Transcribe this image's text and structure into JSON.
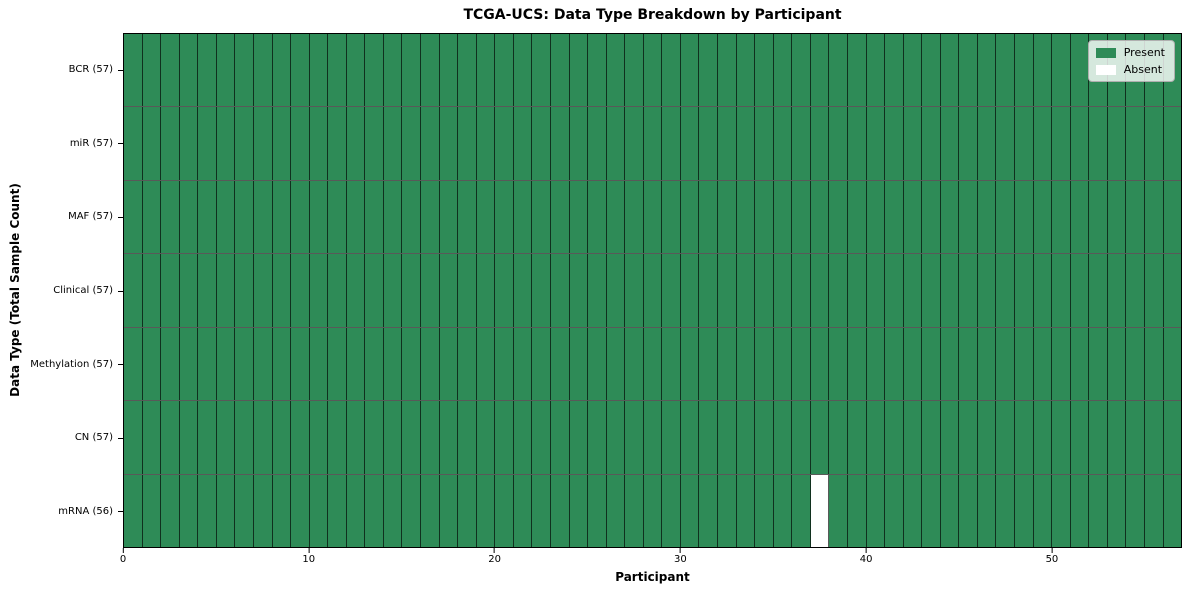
{
  "chart_data": {
    "type": "heatmap",
    "title": "TCGA-UCS: Data Type Breakdown by Participant",
    "xlabel": "Participant",
    "ylabel": "Data Type (Total Sample Count)",
    "n_participants": 57,
    "x_ticks": [
      0,
      10,
      20,
      30,
      40,
      50
    ],
    "x_range": [
      0,
      57
    ],
    "rows": [
      {
        "label": "BCR (57)",
        "data_type": "BCR",
        "sample_count": 57,
        "absent_participants": []
      },
      {
        "label": "miR (57)",
        "data_type": "miR",
        "sample_count": 57,
        "absent_participants": []
      },
      {
        "label": "MAF (57)",
        "data_type": "MAF",
        "sample_count": 57,
        "absent_participants": []
      },
      {
        "label": "Clinical (57)",
        "data_type": "Clinical",
        "sample_count": 57,
        "absent_participants": []
      },
      {
        "label": "Methylation (57)",
        "data_type": "Methylation",
        "sample_count": 57,
        "absent_participants": []
      },
      {
        "label": "CN (57)",
        "data_type": "CN",
        "sample_count": 57,
        "absent_participants": []
      },
      {
        "label": "mRNA (56)",
        "data_type": "mRNA",
        "sample_count": 56,
        "absent_participants": [
          37
        ]
      }
    ],
    "colors": {
      "present": "#2e8b57",
      "absent": "#ffffff",
      "cell_edge": "rgba(0,0,0,0.65)"
    },
    "legend": {
      "position": "upper right",
      "entries": [
        {
          "label": "Present",
          "color": "#2e8b57"
        },
        {
          "label": "Absent",
          "color": "#ffffff"
        }
      ]
    },
    "grid": true
  }
}
